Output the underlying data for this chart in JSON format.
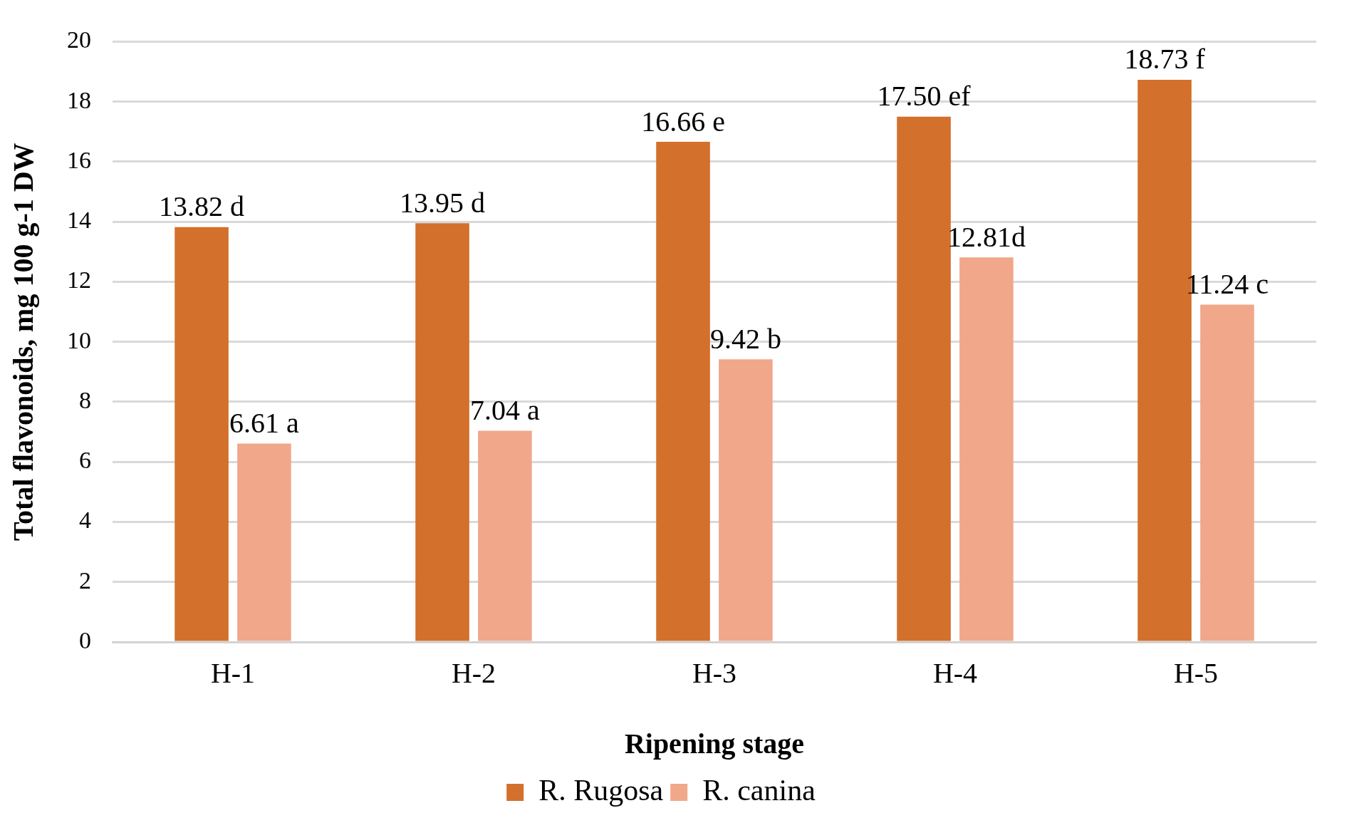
{
  "chart_data": {
    "type": "bar",
    "xlabel": "Ripening stage",
    "ylabel": "Total flavonoids, mg 100 g-1 DW",
    "categories": [
      "H-1",
      "H-2",
      "H-3",
      "H-4",
      "H-5"
    ],
    "series": [
      {
        "name": "R. Rugosa",
        "color": "#d2702c",
        "values": [
          13.82,
          13.95,
          16.66,
          17.5,
          18.73
        ],
        "value_labels": [
          "13.82 d",
          "13.95 d",
          "16.66 e",
          "17.50 ef",
          "18.73 f"
        ]
      },
      {
        "name": "R. canina",
        "color": "#f0a78a",
        "values": [
          6.61,
          7.04,
          9.42,
          12.81,
          11.24
        ],
        "value_labels": [
          "6.61 a",
          "7.04 a",
          "9.42 b",
          "12.81d",
          "11.24 c"
        ]
      }
    ],
    "ylim": [
      0,
      20
    ],
    "yticks": [
      0,
      2,
      4,
      6,
      8,
      10,
      12,
      14,
      16,
      18,
      20
    ],
    "grid": "y",
    "legend": "bottom"
  }
}
